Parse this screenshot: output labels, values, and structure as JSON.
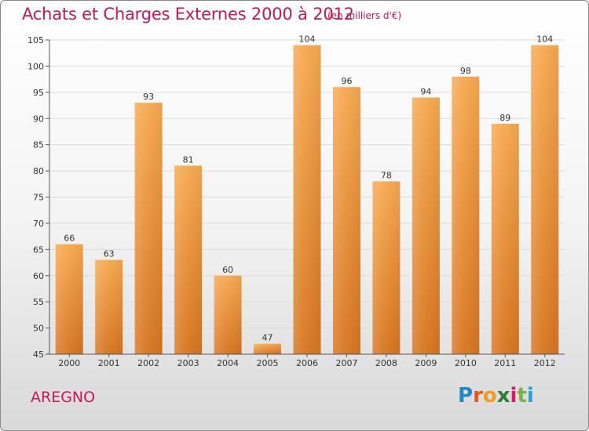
{
  "header": {
    "title": "Achats et Charges Externes 2000 à 2012",
    "subtitle": "(en milliers d'€)"
  },
  "footer": {
    "place": "AREGNO",
    "logo_letters": [
      "P",
      "r",
      "o",
      "x",
      "i",
      "t",
      "i"
    ],
    "logo_colors": [
      "#1e88c8",
      "#e8541e",
      "#f29b1d",
      "#2e7d32",
      "#d81b60",
      "#7cb342",
      "#26a0d8"
    ]
  },
  "colors": {
    "bar_top": "#f7a94f",
    "bar_bottom": "#d77520",
    "title": "#c2185b",
    "grid": "#dcdcdc",
    "axis": "#555555"
  },
  "chart_data": {
    "type": "bar",
    "title": "Achats et Charges Externes 2000 à 2012",
    "subtitle": "(en milliers d'€)",
    "categories": [
      "2000",
      "2001",
      "2002",
      "2003",
      "2004",
      "2005",
      "2006",
      "2007",
      "2008",
      "2009",
      "2010",
      "2011",
      "2012"
    ],
    "values": [
      66,
      63,
      93,
      81,
      60,
      47,
      104,
      96,
      78,
      94,
      98,
      89,
      104
    ],
    "ylim": [
      45,
      105
    ],
    "yticks": [
      45,
      50,
      55,
      60,
      65,
      70,
      75,
      80,
      85,
      90,
      95,
      100,
      105
    ],
    "grid": true,
    "legend": "none",
    "data_labels": true
  }
}
